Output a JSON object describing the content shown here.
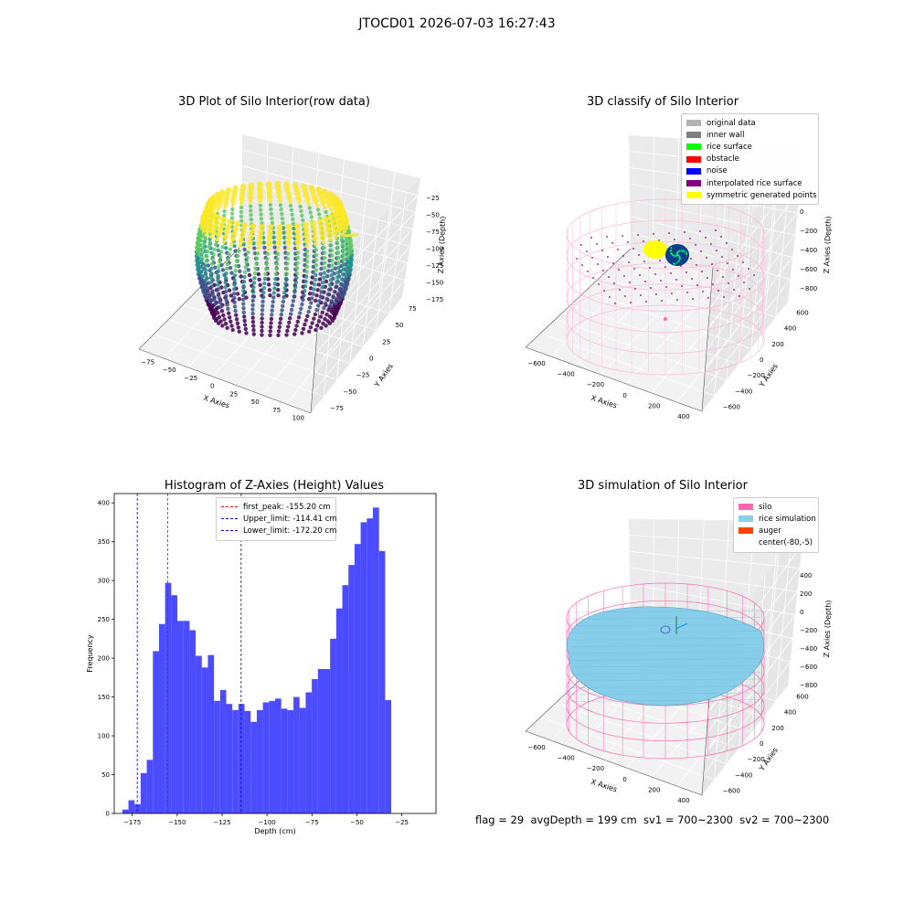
{
  "suptitle": "JTOCD01 2026-07-03 16:27:43",
  "footer": "flag = 29  avgDepth = 199 cm  sv1 = 700~2300  sv2 = 700~2300",
  "panels": {
    "raw": {
      "title": "3D Plot of Silo Interior(row data)",
      "xlabel": "X Axies",
      "ylabel": "Y Axies",
      "zlabel": "Z Axies (Depth)",
      "xticks": [
        "−75",
        "−50",
        "−25",
        "0",
        "25",
        "50",
        "75",
        "100"
      ],
      "yticks": [
        "−75",
        "−50",
        "−25",
        "0",
        "25",
        "50",
        "75"
      ],
      "zticks": [
        "−25",
        "−50",
        "−75",
        "−100",
        "−125",
        "−150",
        "−175"
      ],
      "colormap": [
        "#440154",
        "#3b528b",
        "#21918c",
        "#5ec962",
        "#fde725"
      ]
    },
    "classify": {
      "title": "3D classify of Silo Interior",
      "xlabel": "X Axies",
      "ylabel": "Y Axies",
      "zlabel": "Z Axies (Depth)",
      "xticks": [
        "−600",
        "−400",
        "−200",
        "0",
        "200",
        "400"
      ],
      "yticks": [
        "−600",
        "−400",
        "−200",
        "0",
        "200",
        "400",
        "600"
      ],
      "zticks": [
        "200",
        "0",
        "−200",
        "−400",
        "−600",
        "−800"
      ],
      "legend": [
        {
          "label": "original data",
          "color": "#b3b3b3"
        },
        {
          "label": "inner wall",
          "color": "#808080"
        },
        {
          "label": "rice surface",
          "color": "#00ff00"
        },
        {
          "label": "obstacle",
          "color": "#ff0000"
        },
        {
          "label": "noise",
          "color": "#0000ff"
        },
        {
          "label": "interpolated rice surface",
          "color": "#800080"
        },
        {
          "label": "symmetric generated points",
          "color": "#ffff00"
        }
      ]
    },
    "histogram": {
      "title": "Histogram of Z-Axies (Height) Values",
      "xlabel": "Depth (cm)",
      "ylabel": "Frequency",
      "legend": [
        {
          "label": "first_peak: -155.20 cm",
          "color": "#ff0000"
        },
        {
          "label": "Upper_limit: -114.41 cm",
          "color": "#0000ff"
        },
        {
          "label": "Lower_limit: -172.20 cm",
          "color": "#0000ff"
        }
      ]
    },
    "simulation": {
      "title": "3D simulation of Silo Interior",
      "xlabel": "X Axies",
      "ylabel": "Y Axies",
      "zlabel": "Z Axies (Depth)",
      "xticks": [
        "−600",
        "−400",
        "−200",
        "0",
        "200",
        "400"
      ],
      "yticks": [
        "−600",
        "−400",
        "−200",
        "0",
        "200",
        "400",
        "600"
      ],
      "zticks": [
        "400",
        "200",
        "0",
        "−200",
        "−400",
        "−600",
        "−800"
      ],
      "legend": [
        {
          "label": "silo",
          "color": "#ff69b4"
        },
        {
          "label": "rice simulation",
          "color": "#87ceeb"
        },
        {
          "label": "auger",
          "color": "#ff4500"
        },
        {
          "label": "center(-80,-5)",
          "color": ""
        }
      ]
    }
  },
  "chart_data": [
    {
      "type": "scatter",
      "title": "3D Plot of Silo Interior(row data)",
      "xlabel": "X Axies",
      "ylabel": "Y Axies",
      "zlabel": "Z Axies (Depth)",
      "xlim": [
        -85,
        105
      ],
      "ylim": [
        -85,
        95
      ],
      "zlim": [
        -185,
        -10
      ],
      "colormap": "viridis"
    },
    {
      "type": "scatter",
      "title": "3D classify of Silo Interior",
      "xlabel": "X Axies",
      "ylabel": "Y Axies",
      "zlabel": "Z Axies (Depth)",
      "xlim": [
        -700,
        500
      ],
      "ylim": [
        -650,
        650
      ],
      "zlim": [
        -900,
        250
      ]
    },
    {
      "type": "bar",
      "title": "Histogram of Z-Axies (Height) Values",
      "xlabel": "Depth (cm)",
      "ylabel": "Frequency",
      "xlim": [
        -185,
        -6
      ],
      "ylim": [
        0,
        412
      ],
      "bin_start": -180.5,
      "bin_width": 3.4,
      "values": [
        5,
        17,
        12,
        52,
        69,
        209,
        244,
        297,
        281,
        248,
        248,
        236,
        203,
        188,
        204,
        145,
        159,
        141,
        133,
        141,
        132,
        118,
        133,
        143,
        145,
        148,
        135,
        133,
        150,
        136,
        156,
        173,
        186,
        186,
        225,
        264,
        294,
        320,
        347,
        375,
        380,
        394,
        338,
        146
      ],
      "vlines": [
        {
          "label": "first_peak: -155.20 cm",
          "x": -155.2,
          "color": "#ff0000"
        },
        {
          "label": "Upper_limit: -114.41 cm",
          "x": -114.41,
          "color": "#0000ff"
        },
        {
          "label": "Lower_limit: -172.20 cm",
          "x": -172.2,
          "color": "#0000ff"
        }
      ],
      "xticks": [
        -175,
        -150,
        -125,
        -100,
        -75,
        -50,
        -25
      ],
      "yticks": [
        0,
        50,
        100,
        150,
        200,
        250,
        300,
        350,
        400
      ]
    },
    {
      "type": "scatter",
      "title": "3D simulation of Silo Interior",
      "xlabel": "X Axies",
      "ylabel": "Y Axies",
      "zlabel": "Z Axies (Depth)",
      "xlim": [
        -700,
        500
      ],
      "ylim": [
        -650,
        650
      ],
      "zlim": [
        -900,
        450
      ]
    }
  ]
}
